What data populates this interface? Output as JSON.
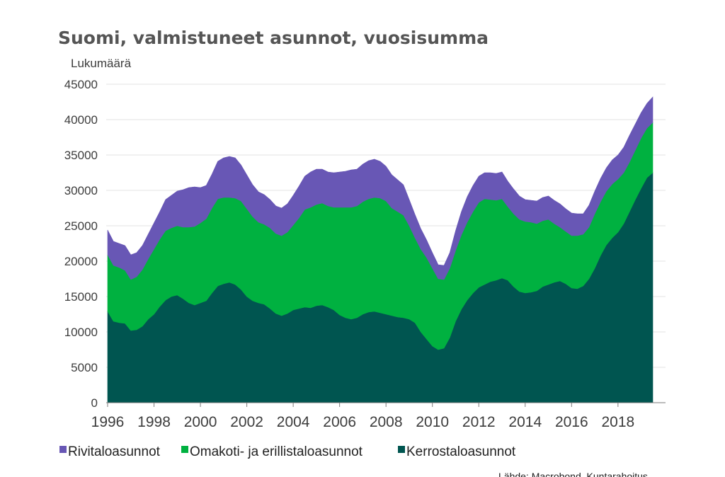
{
  "chart_data": {
    "type": "area",
    "stacked": true,
    "title": "Suomi, valmistuneet asunnot, vuosisumma",
    "ylabel": "Lukumäärä",
    "xlabel": "",
    "xlim": [
      1996,
      2019.5
    ],
    "ylim": [
      0,
      45000
    ],
    "yticks": [
      0,
      5000,
      10000,
      15000,
      20000,
      25000,
      30000,
      35000,
      40000,
      45000
    ],
    "xticks": [
      1996,
      1998,
      2000,
      2002,
      2004,
      2006,
      2008,
      2010,
      2012,
      2014,
      2016,
      2018
    ],
    "grid": true,
    "legend_position": "bottom",
    "source": "Lähde: Macrobond, Kuntarahoitus",
    "x": [
      1996.0,
      1996.25,
      1996.5,
      1996.75,
      1997.0,
      1997.25,
      1997.5,
      1997.75,
      1998.0,
      1998.25,
      1998.5,
      1998.75,
      1999.0,
      1999.25,
      1999.5,
      1999.75,
      2000.0,
      2000.25,
      2000.5,
      2000.75,
      2001.0,
      2001.25,
      2001.5,
      2001.75,
      2002.0,
      2002.25,
      2002.5,
      2002.75,
      2003.0,
      2003.25,
      2003.5,
      2003.75,
      2004.0,
      2004.25,
      2004.5,
      2004.75,
      2005.0,
      2005.25,
      2005.5,
      2005.75,
      2006.0,
      2006.25,
      2006.5,
      2006.75,
      2007.0,
      2007.25,
      2007.5,
      2007.75,
      2008.0,
      2008.25,
      2008.5,
      2008.75,
      2009.0,
      2009.25,
      2009.5,
      2009.75,
      2010.0,
      2010.25,
      2010.5,
      2010.75,
      2011.0,
      2011.25,
      2011.5,
      2011.75,
      2012.0,
      2012.25,
      2012.5,
      2012.75,
      2013.0,
      2013.25,
      2013.5,
      2013.75,
      2014.0,
      2014.25,
      2014.5,
      2014.75,
      2015.0,
      2015.25,
      2015.5,
      2015.75,
      2016.0,
      2016.25,
      2016.5,
      2016.75,
      2017.0,
      2017.25,
      2017.5,
      2017.75,
      2018.0,
      2018.25,
      2018.5,
      2018.75,
      2019.0,
      2019.25,
      2019.5
    ],
    "series": [
      {
        "name": "Kerrostaloasunnot",
        "color": "#005550",
        "values": [
          12900,
          11500,
          11300,
          11200,
          10200,
          10300,
          10800,
          11800,
          12500,
          13600,
          14500,
          15000,
          15200,
          14700,
          14100,
          13800,
          14100,
          14400,
          15500,
          16500,
          16800,
          17000,
          16700,
          16000,
          15000,
          14400,
          14100,
          13900,
          13300,
          12600,
          12300,
          12600,
          13100,
          13300,
          13500,
          13400,
          13700,
          13800,
          13500,
          13100,
          12400,
          12000,
          11800,
          12000,
          12500,
          12800,
          12900,
          12700,
          12500,
          12300,
          12100,
          12000,
          11800,
          11300,
          10000,
          9000,
          8000,
          7500,
          7700,
          9200,
          11500,
          13200,
          14500,
          15500,
          16300,
          16700,
          17100,
          17300,
          17600,
          17300,
          16400,
          15700,
          15500,
          15600,
          15800,
          16400,
          16700,
          17000,
          17200,
          16800,
          16200,
          16100,
          16500,
          17500,
          19000,
          20800,
          22300,
          23300,
          24100,
          25300,
          27000,
          28700,
          30300,
          31800,
          32500
        ]
      },
      {
        "name": "Omakoti- ja erillistaloasunnot",
        "color": "#00B140",
        "values": [
          8000,
          7900,
          7800,
          7500,
          7200,
          7500,
          8000,
          8500,
          9200,
          9500,
          9800,
          9700,
          9800,
          10100,
          10700,
          11100,
          11300,
          11600,
          12000,
          12300,
          12200,
          12000,
          12200,
          12500,
          12400,
          11900,
          11400,
          11300,
          11400,
          11300,
          11300,
          11500,
          12000,
          12800,
          13800,
          14200,
          14300,
          14400,
          14300,
          14500,
          15200,
          15600,
          15800,
          15800,
          15900,
          16000,
          16100,
          16200,
          16000,
          15200,
          14900,
          14500,
          13200,
          12000,
          11700,
          11500,
          11000,
          10000,
          9700,
          9800,
          10000,
          10500,
          11000,
          11500,
          12000,
          12100,
          11600,
          11300,
          11200,
          10400,
          10300,
          10200,
          10100,
          9900,
          9500,
          9300,
          9200,
          8300,
          7600,
          7400,
          7400,
          7500,
          7300,
          7300,
          7700,
          7600,
          7600,
          7600,
          7500,
          7200,
          7000,
          7000,
          7100,
          7000,
          7100
        ]
      },
      {
        "name": "Rivitaloasunnot",
        "color": "#6857B5",
        "values": [
          3500,
          3400,
          3400,
          3500,
          3500,
          3400,
          3400,
          3500,
          3700,
          3900,
          4400,
          4600,
          4900,
          5300,
          5600,
          5600,
          5000,
          4700,
          4800,
          5300,
          5600,
          5800,
          5700,
          5100,
          4800,
          4500,
          4300,
          4200,
          4000,
          3900,
          3900,
          4000,
          4200,
          4500,
          4700,
          5000,
          5000,
          4800,
          4800,
          4900,
          5000,
          5100,
          5300,
          5200,
          5300,
          5400,
          5400,
          5200,
          4900,
          4700,
          4500,
          4300,
          3700,
          3300,
          2900,
          2500,
          2200,
          2000,
          2000,
          2200,
          2800,
          3300,
          3600,
          3700,
          3700,
          3700,
          3800,
          3800,
          3800,
          3600,
          3500,
          3300,
          3100,
          3100,
          3200,
          3300,
          3300,
          3300,
          3300,
          3200,
          3200,
          3100,
          2900,
          3100,
          3200,
          3300,
          3300,
          3400,
          3400,
          3600,
          3800,
          3700,
          3600,
          3500,
          3600
        ]
      }
    ]
  }
}
